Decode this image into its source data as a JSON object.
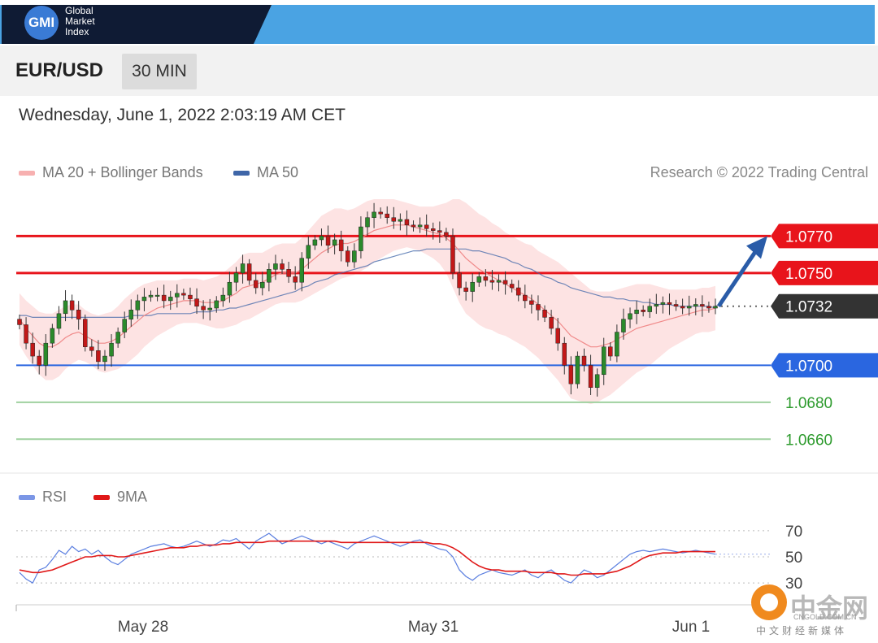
{
  "header": {
    "logo_badge": "GMI",
    "logo_line1": "Global",
    "logo_line2": "Market",
    "logo_line3": "Index",
    "colors": {
      "dark": "#0f1b34",
      "blue": "#4aa3e3"
    }
  },
  "instrument": {
    "symbol": "EUR/USD",
    "timeframe": "30 MIN"
  },
  "date_line": "Wednesday, June 1, 2022 2:03:19 AM CET",
  "legend": {
    "ma20_label": "MA 20 + Bollinger Bands",
    "ma50_label": "MA 50",
    "credit": "Research © 2022 Trading Central",
    "colors": {
      "ma20": "#f08a8a",
      "ma50": "#3f66a8"
    }
  },
  "watermark": {
    "main": "中金网",
    "sub": "CNGOLD.COM.CN",
    "sub2": "中文财经新媒体"
  },
  "chart_data": [
    {
      "type": "candlestick",
      "title": "",
      "y_range": [
        1.065,
        1.079
      ],
      "x_ticks": [
        "May 28",
        "May 31",
        "Jun 1"
      ],
      "levels": [
        {
          "label": "1.0770",
          "value": 1.077,
          "kind": "resistance",
          "color": "#e8141b"
        },
        {
          "label": "1.0750",
          "value": 1.075,
          "kind": "resistance",
          "color": "#e8141b"
        },
        {
          "label": "1.0732",
          "value": 1.0732,
          "kind": "last price",
          "color": "#333333"
        },
        {
          "label": "1.0700",
          "value": 1.07,
          "kind": "pivot",
          "color": "#2a66e0"
        },
        {
          "label": "1.0680",
          "value": 1.068,
          "kind": "support",
          "color": "#2e9b2e"
        },
        {
          "label": "1.0660",
          "value": 1.066,
          "kind": "support",
          "color": "#2e9b2e"
        }
      ],
      "close_series": [
        1.0722,
        1.0712,
        1.0705,
        1.07,
        1.0712,
        1.072,
        1.0728,
        1.0735,
        1.073,
        1.0725,
        1.071,
        1.0708,
        1.0702,
        1.0705,
        1.0712,
        1.0718,
        1.0725,
        1.073,
        1.0735,
        1.0737,
        1.0738,
        1.0738,
        1.0735,
        1.0737,
        1.0739,
        1.0738,
        1.0736,
        1.0732,
        1.073,
        1.0731,
        1.0735,
        1.0738,
        1.0745,
        1.075,
        1.0755,
        1.0746,
        1.0742,
        1.0745,
        1.0752,
        1.0755,
        1.0752,
        1.0748,
        1.0745,
        1.0758,
        1.0765,
        1.0768,
        1.077,
        1.0765,
        1.0768,
        1.0762,
        1.0756,
        1.0762,
        1.0775,
        1.078,
        1.0783,
        1.0782,
        1.078,
        1.0778,
        1.0779,
        1.0776,
        1.0775,
        1.0776,
        1.0774,
        1.0773,
        1.0772,
        1.077,
        1.075,
        1.0742,
        1.074,
        1.0745,
        1.0748,
        1.0746,
        1.0745,
        1.0746,
        1.0744,
        1.0742,
        1.0738,
        1.0735,
        1.0733,
        1.073,
        1.0726,
        1.072,
        1.0712,
        1.07,
        1.069,
        1.0705,
        1.07,
        1.0688,
        1.0695,
        1.071,
        1.0705,
        1.0718,
        1.0725,
        1.0728,
        1.073,
        1.0729,
        1.0732,
        1.0733,
        1.0734,
        1.0733,
        1.0732,
        1.0731,
        1.0732,
        1.0733,
        1.0732,
        1.0731,
        1.0732
      ],
      "ma20": [
        1.0725,
        1.072,
        1.0716,
        1.0712,
        1.071,
        1.071,
        1.0712,
        1.0715,
        1.0717,
        1.0718,
        1.0716,
        1.0714,
        1.0712,
        1.0712,
        1.0713,
        1.0715,
        1.0718,
        1.0721,
        1.0724,
        1.0727,
        1.0729,
        1.0731,
        1.0732,
        1.0733,
        1.0734,
        1.0735,
        1.0735,
        1.0735,
        1.0734,
        1.0734,
        1.0734,
        1.0735,
        1.0737,
        1.0739,
        1.0742,
        1.0743,
        1.0744,
        1.0745,
        1.0747,
        1.0749,
        1.075,
        1.075,
        1.075,
        1.0752,
        1.0755,
        1.0758,
        1.0761,
        1.0763,
        1.0765,
        1.0766,
        1.0766,
        1.0767,
        1.0769,
        1.0771,
        1.0773,
        1.0774,
        1.0775,
        1.0776,
        1.0776,
        1.0776,
        1.0775,
        1.0774,
        1.0773,
        1.0772,
        1.0771,
        1.0769,
        1.0766,
        1.0762,
        1.0758,
        1.0755,
        1.0752,
        1.075,
        1.0748,
        1.0746,
        1.0744,
        1.0742,
        1.074,
        1.0738,
        1.0736,
        1.0733,
        1.073,
        1.0727,
        1.0724,
        1.072,
        1.0716,
        1.0714,
        1.0712,
        1.071,
        1.071,
        1.0711,
        1.0712,
        1.0714,
        1.0716,
        1.0718,
        1.072,
        1.0721,
        1.0722,
        1.0723,
        1.0724,
        1.0725,
        1.0726,
        1.0727,
        1.0728,
        1.0729,
        1.073,
        1.073,
        1.0731
      ],
      "bb_width": [
        0.0014,
        0.0015,
        0.0016,
        0.0017,
        0.0018,
        0.0018,
        0.0018,
        0.0017,
        0.0016,
        0.0015,
        0.0014,
        0.0014,
        0.0015,
        0.0016,
        0.0016,
        0.0017,
        0.0018,
        0.0018,
        0.0018,
        0.0017,
        0.0016,
        0.0015,
        0.0014,
        0.0013,
        0.0012,
        0.0012,
        0.0012,
        0.0012,
        0.0012,
        0.0013,
        0.0014,
        0.0015,
        0.0016,
        0.0017,
        0.0018,
        0.0018,
        0.0017,
        0.0016,
        0.0016,
        0.0016,
        0.0016,
        0.0016,
        0.0016,
        0.0017,
        0.0018,
        0.0019,
        0.002,
        0.002,
        0.002,
        0.0019,
        0.0018,
        0.0018,
        0.0018,
        0.0018,
        0.0017,
        0.0016,
        0.0015,
        0.0014,
        0.0013,
        0.0012,
        0.0012,
        0.0012,
        0.0013,
        0.0014,
        0.0016,
        0.0019,
        0.0024,
        0.0028,
        0.003,
        0.003,
        0.003,
        0.003,
        0.0029,
        0.0029,
        0.0028,
        0.0028,
        0.0028,
        0.0028,
        0.0029,
        0.0029,
        0.003,
        0.0031,
        0.0032,
        0.0033,
        0.0034,
        0.0033,
        0.0032,
        0.0031,
        0.003,
        0.0029,
        0.0028,
        0.0027,
        0.0026,
        0.0025,
        0.0024,
        0.0023,
        0.0022,
        0.002,
        0.0018,
        0.0016,
        0.0015,
        0.0014,
        0.0013,
        0.0012,
        0.0012,
        0.0012,
        0.0012,
        0.0012
      ],
      "ma50": [
        1.0727,
        1.0727,
        1.0726,
        1.0726,
        1.0726,
        1.0726,
        1.0726,
        1.0726,
        1.0726,
        1.0726,
        1.0726,
        1.0726,
        1.0726,
        1.0726,
        1.0726,
        1.0726,
        1.0726,
        1.0727,
        1.0727,
        1.0727,
        1.0727,
        1.0728,
        1.0728,
        1.0728,
        1.0728,
        1.0728,
        1.0728,
        1.0729,
        1.0729,
        1.0729,
        1.073,
        1.073,
        1.0731,
        1.0731,
        1.0732,
        1.0733,
        1.0734,
        1.0735,
        1.0736,
        1.0737,
        1.0738,
        1.0739,
        1.074,
        1.0742,
        1.0743,
        1.0745,
        1.0746,
        1.0747,
        1.0749,
        1.075,
        1.0751,
        1.0752,
        1.0753,
        1.0754,
        1.0756,
        1.0757,
        1.0758,
        1.0759,
        1.076,
        1.0761,
        1.0762,
        1.0762,
        1.0763,
        1.0763,
        1.0763,
        1.0763,
        1.0763,
        1.0763,
        1.0763,
        1.0762,
        1.0762,
        1.0761,
        1.076,
        1.0759,
        1.0758,
        1.0756,
        1.0755,
        1.0753,
        1.0752,
        1.075,
        1.0748,
        1.0747,
        1.0745,
        1.0744,
        1.0742,
        1.0741,
        1.074,
        1.0739,
        1.0738,
        1.0737,
        1.0737,
        1.0736,
        1.0736,
        1.0735,
        1.0735,
        1.0734,
        1.0734,
        1.0733,
        1.0733,
        1.0733,
        1.0732,
        1.0732,
        1.0732,
        1.0732,
        1.0732,
        1.0732,
        1.0731
      ]
    },
    {
      "type": "line",
      "title": "",
      "y_range": [
        22,
        78
      ],
      "y_ticks": [
        "70",
        "50",
        "30"
      ],
      "x_ticks": [
        "May 28",
        "May 31",
        "Jun 1"
      ],
      "series": [
        {
          "name": "RSI",
          "color": "#5b7fe0",
          "values": [
            38,
            33,
            30,
            40,
            42,
            48,
            55,
            52,
            58,
            54,
            56,
            52,
            55,
            50,
            46,
            44,
            48,
            52,
            54,
            56,
            58,
            59,
            60,
            58,
            57,
            58,
            60,
            62,
            60,
            58,
            60,
            63,
            62,
            64,
            60,
            56,
            62,
            65,
            68,
            64,
            60,
            62,
            64,
            66,
            64,
            62,
            60,
            62,
            60,
            58,
            56,
            60,
            62,
            64,
            66,
            64,
            62,
            60,
            58,
            60,
            62,
            63,
            60,
            58,
            56,
            55,
            50,
            40,
            35,
            32,
            36,
            38,
            40,
            38,
            37,
            36,
            38,
            40,
            36,
            34,
            38,
            40,
            36,
            32,
            30,
            35,
            40,
            38,
            34,
            36,
            40,
            44,
            48,
            52,
            54,
            55,
            54,
            55,
            56,
            55,
            54,
            53,
            54,
            55,
            54,
            53,
            52
          ]
        },
        {
          "name": "9MA",
          "color": "#e01818",
          "values": [
            40,
            39,
            38,
            38,
            39,
            40,
            42,
            44,
            46,
            48,
            50,
            50,
            51,
            51,
            51,
            50,
            50,
            51,
            52,
            53,
            54,
            55,
            56,
            57,
            57,
            57,
            58,
            58,
            59,
            59,
            59,
            60,
            60,
            61,
            61,
            61,
            61,
            61,
            62,
            62,
            62,
            62,
            62,
            62,
            62,
            62,
            62,
            62,
            62,
            61,
            61,
            61,
            61,
            61,
            61,
            61,
            61,
            61,
            61,
            61,
            61,
            61,
            61,
            60,
            60,
            59,
            57,
            54,
            50,
            46,
            43,
            41,
            40,
            40,
            39,
            39,
            39,
            39,
            38,
            38,
            38,
            38,
            37,
            37,
            36,
            36,
            37,
            37,
            37,
            37,
            38,
            39,
            41,
            43,
            46,
            49,
            51,
            52,
            53,
            53,
            53,
            54,
            54,
            54,
            54,
            54,
            54
          ]
        }
      ]
    }
  ]
}
